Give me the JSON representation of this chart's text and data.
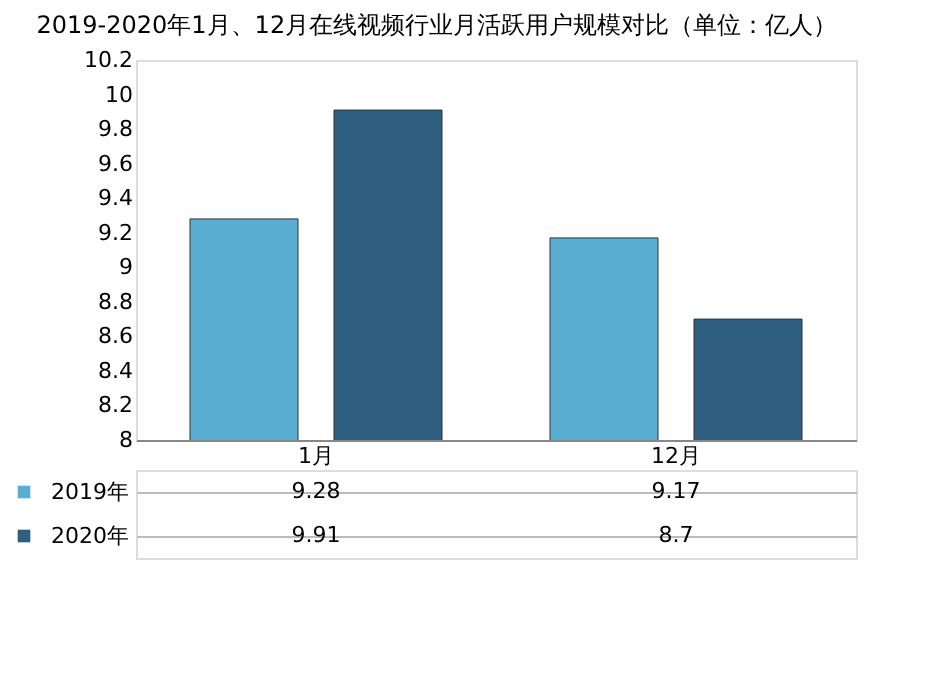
{
  "chart_data": {
    "type": "bar",
    "title": "2019-2020年1月、12月在线视频行业月活跃用户规模对比（单位：亿人）",
    "categories": [
      "1月",
      "12月"
    ],
    "series": [
      {
        "name": "2019年",
        "color": "#5aaed2",
        "values": [
          9.28,
          9.17
        ]
      },
      {
        "name": "2020年",
        "color": "#2f5f80",
        "values": [
          9.91,
          8.7
        ]
      }
    ],
    "ylim": [
      8,
      10.2
    ],
    "yticks": [
      8,
      8.2,
      8.4,
      8.6,
      8.8,
      9,
      9.2,
      9.4,
      9.6,
      9.8,
      10,
      10.2
    ],
    "grid": false,
    "data_labels": true,
    "legend": "bottom"
  }
}
